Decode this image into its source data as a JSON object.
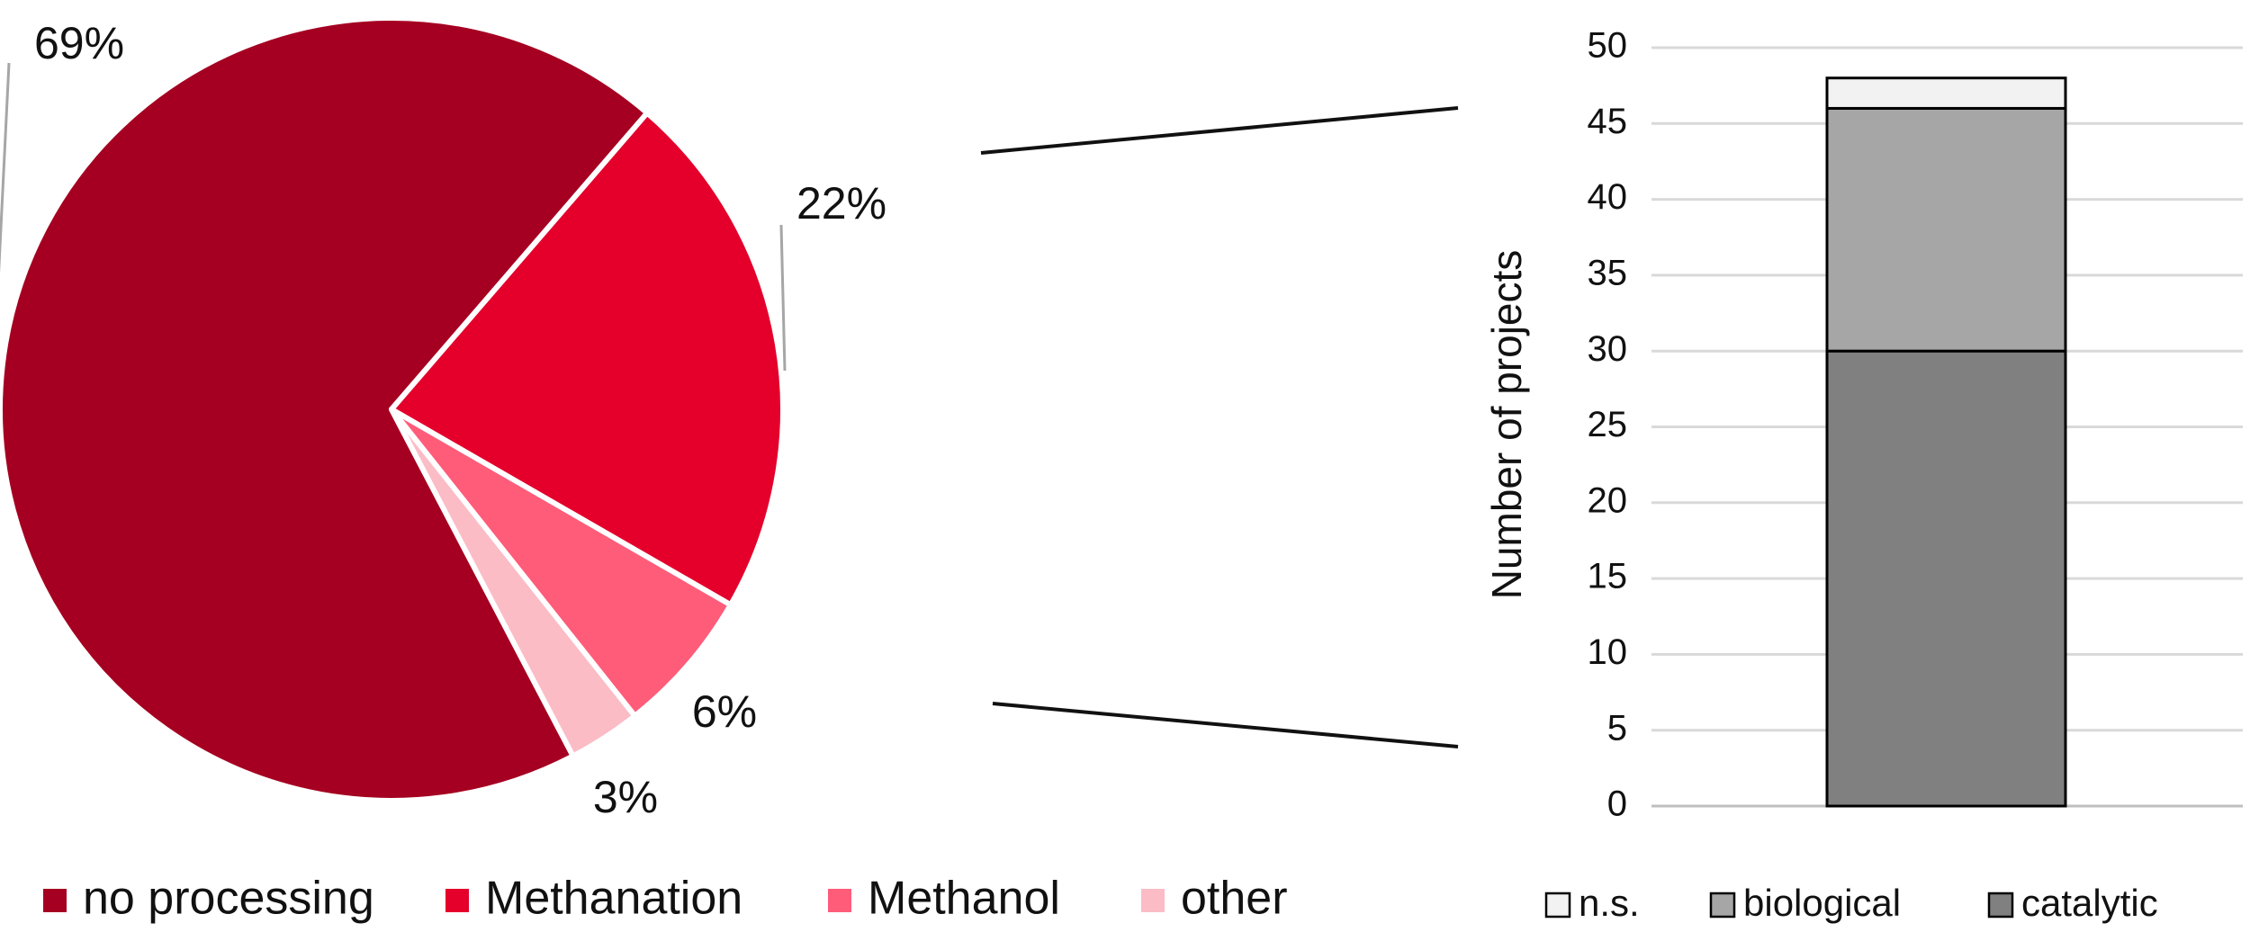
{
  "chart_data": [
    {
      "type": "pie",
      "slices": [
        {
          "label": "no processing",
          "value": 69,
          "value_label": "69%",
          "color": "#A50021"
        },
        {
          "label": "Methanation",
          "value": 22,
          "value_label": "22%",
          "color": "#E4002B"
        },
        {
          "label": "Methanol",
          "value": 6,
          "value_label": "6%",
          "color": "#FF5C7A"
        },
        {
          "label": "other",
          "value": 3,
          "value_label": "3%",
          "color": "#FBBCC6"
        }
      ],
      "legend_position": "bottom"
    },
    {
      "type": "bar",
      "stacked": true,
      "categories": [
        ""
      ],
      "series": [
        {
          "name": "catalytic",
          "values": [
            30
          ],
          "color": "#808080"
        },
        {
          "name": "biological",
          "values": [
            16
          ],
          "color": "#A6A6A6"
        },
        {
          "name": "n.s.",
          "values": [
            2
          ],
          "color": "#F2F2F2"
        }
      ],
      "legend_order": [
        "n.s.",
        "biological",
        "catalytic"
      ],
      "ylabel": "Number of projects",
      "ylim": [
        0,
        50
      ],
      "yticks": [
        0,
        5,
        10,
        15,
        20,
        25,
        30,
        35,
        40,
        45,
        50
      ],
      "grid": true,
      "legend_position": "bottom"
    }
  ]
}
